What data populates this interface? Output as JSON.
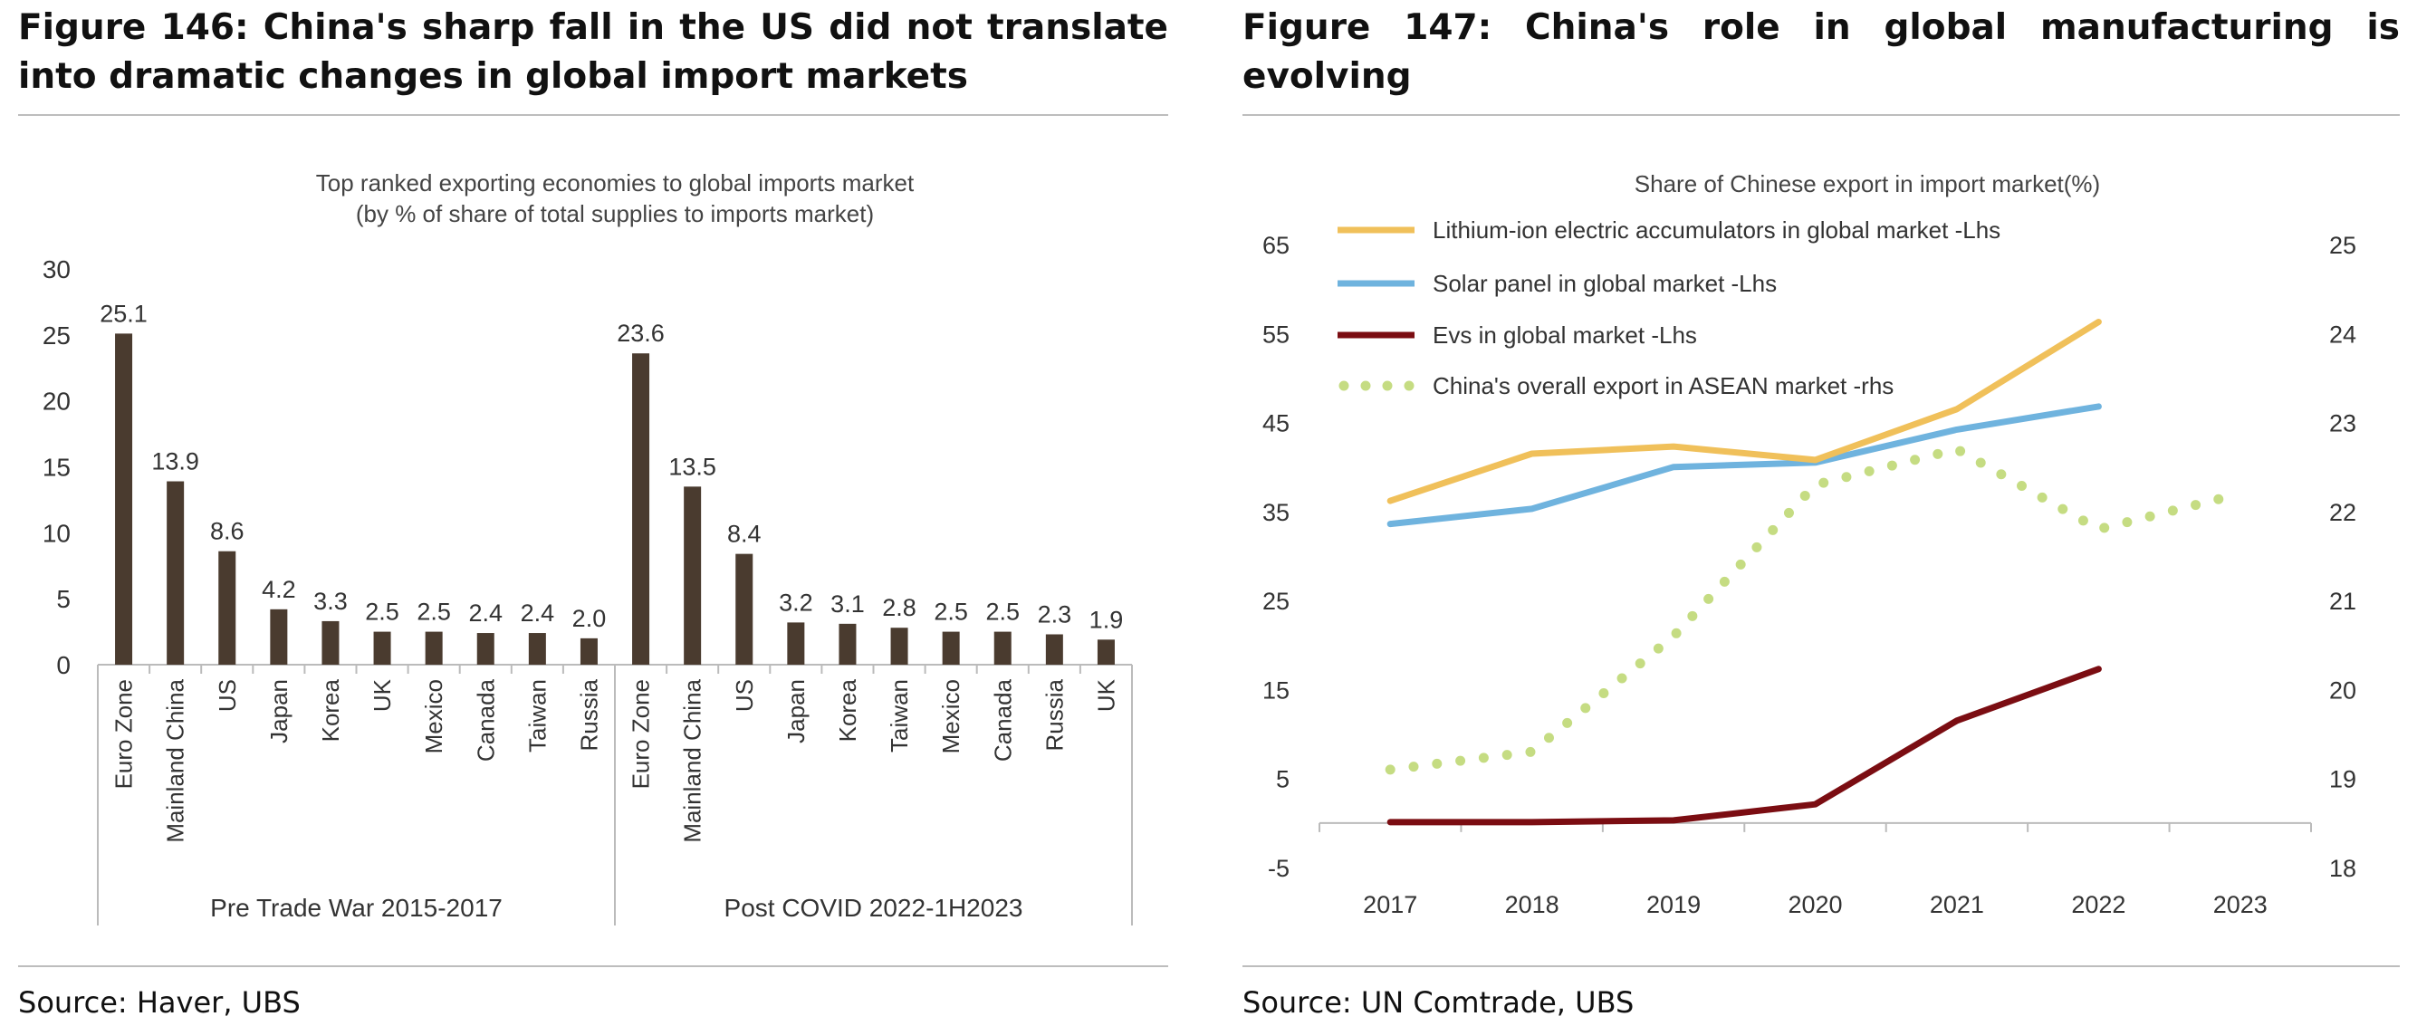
{
  "left": {
    "figure_title": "Figure 146: China's sharp fall in the US did not translate into dramatic changes in global import markets",
    "source": "Source: Haver, UBS"
  },
  "right": {
    "figure_title": "Figure 147: China's role in global manufacturing is evolving",
    "source": "Source: UN Comtrade, UBS"
  },
  "chart_data": [
    {
      "type": "bar",
      "title": "Top ranked exporting economies to global imports market",
      "subtitle": "(by % of share of total supplies to imports market)",
      "ylim": [
        0,
        30
      ],
      "yticks": [
        0,
        5,
        10,
        15,
        20,
        25,
        30
      ],
      "colors": {
        "bar": "#4a3b2f"
      },
      "groups": [
        {
          "name": "Pre Trade War 2015-2017",
          "categories": [
            "Euro Zone",
            "Mainland China",
            "US",
            "Japan",
            "Korea",
            "UK",
            "Mexico",
            "Canada",
            "Taiwan",
            "Russia"
          ],
          "values": [
            25.1,
            13.9,
            8.6,
            4.2,
            3.3,
            2.5,
            2.5,
            2.4,
            2.4,
            2.0
          ],
          "labels": [
            "25.1",
            "13.9",
            "8.6",
            "4.2",
            "3.3",
            "2.5",
            "2.5",
            "2.4",
            "2.4",
            "2.0"
          ]
        },
        {
          "name": "Post COVID 2022-1H2023",
          "categories": [
            "Euro Zone",
            "Mainland China",
            "US",
            "Japan",
            "Korea",
            "Taiwan",
            "Mexico",
            "Canada",
            "Russia",
            "UK"
          ],
          "values": [
            23.6,
            13.5,
            8.4,
            3.2,
            3.1,
            2.8,
            2.5,
            2.5,
            2.3,
            1.9
          ],
          "labels": [
            "23.6",
            "13.5",
            "8.4",
            "3.2",
            "3.1",
            "2.8",
            "2.5",
            "2.5",
            "2.3",
            "1.9"
          ]
        }
      ]
    },
    {
      "type": "line",
      "title": "Share of Chinese export in import market(%)",
      "x": [
        "2017",
        "2018",
        "2019",
        "2020",
        "2021",
        "2022",
        "2023"
      ],
      "ylim_left": [
        -5,
        65
      ],
      "yticks_left": [
        -5,
        5,
        15,
        25,
        35,
        45,
        55,
        65
      ],
      "ylim_right": [
        18,
        25
      ],
      "yticks_right": [
        18,
        19,
        20,
        21,
        22,
        23,
        24,
        25
      ],
      "legend_position": "top-left",
      "series": [
        {
          "name": "Lithium-ion electric accumulators in global market -Lhs",
          "axis": "left",
          "style": "solid",
          "color": "#f0c05a",
          "values": [
            36.2,
            41.5,
            42.3,
            40.8,
            46.5,
            56.3,
            null
          ]
        },
        {
          "name": "Solar panel in global market -Lhs",
          "axis": "left",
          "style": "solid",
          "color": "#6fb3de",
          "values": [
            33.6,
            35.3,
            40.0,
            40.5,
            44.2,
            46.8,
            null
          ]
        },
        {
          "name": "Evs in global market -Lhs",
          "axis": "left",
          "style": "solid",
          "color": "#7b0d12",
          "values": [
            0.1,
            0.1,
            0.3,
            2.1,
            11.5,
            17.3,
            null
          ]
        },
        {
          "name": "China's overall export in ASEAN market -rhs",
          "axis": "right",
          "style": "dotted",
          "color": "#c5dc82",
          "values": [
            19.1,
            19.3,
            20.6,
            22.3,
            22.7,
            21.8,
            22.2
          ]
        }
      ]
    }
  ]
}
